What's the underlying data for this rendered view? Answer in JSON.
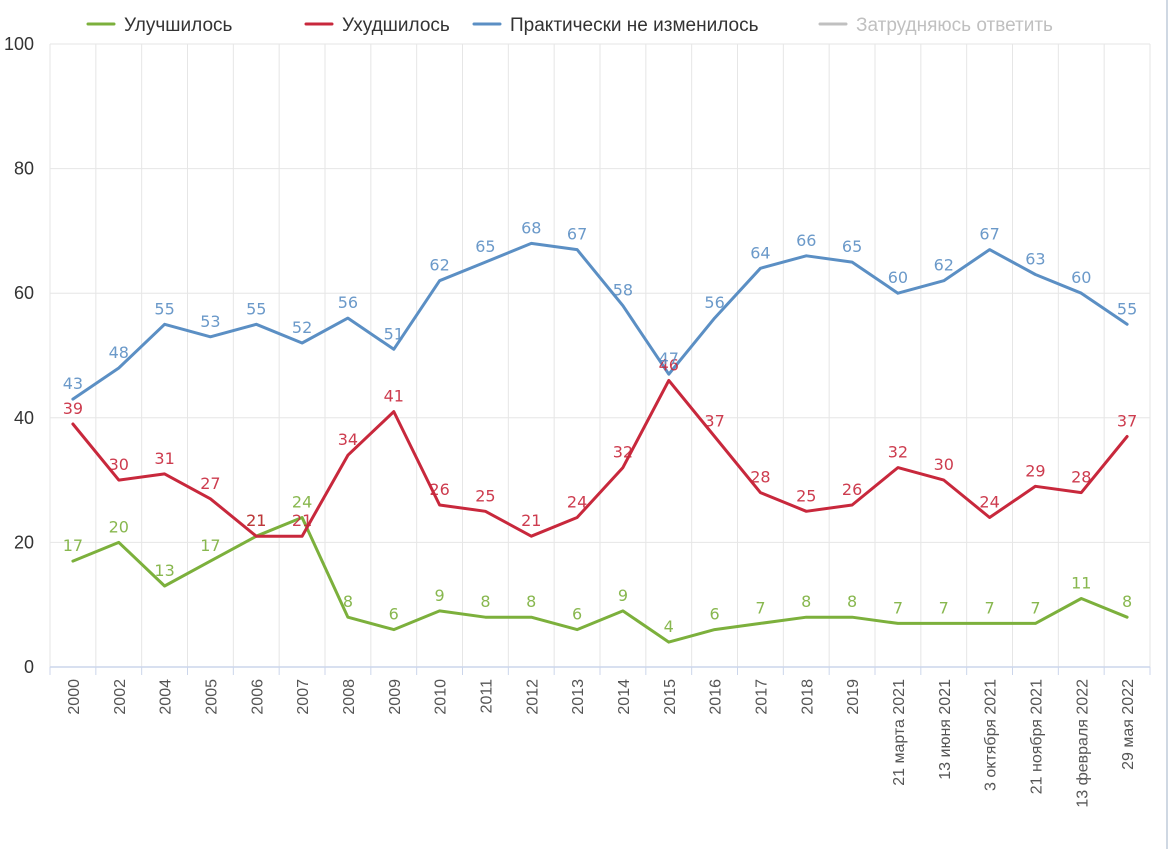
{
  "chart_data": {
    "type": "line",
    "title": "",
    "xlabel": "",
    "ylabel": "",
    "ylim": [
      0,
      100
    ],
    "yticks": [
      0,
      20,
      40,
      60,
      80,
      100
    ],
    "grid": true,
    "legend_position": "top",
    "categories": [
      "2000",
      "2002",
      "2004",
      "2005",
      "2006",
      "2007",
      "2008",
      "2009",
      "2010",
      "2011",
      "2012",
      "2013",
      "2014",
      "2015",
      "2016",
      "2017",
      "2018",
      "2019",
      "21 марта 2021",
      "13 июня 2021",
      "3 октября 2021",
      "21 ноября 2021",
      "13 февраля 2022",
      "29 мая 2022"
    ],
    "series": [
      {
        "name": "Улучшилось",
        "color": "#7cb03c",
        "visible": true,
        "values": [
          17,
          20,
          13,
          17,
          21,
          24,
          8,
          6,
          9,
          8,
          8,
          6,
          9,
          4,
          6,
          7,
          8,
          8,
          7,
          7,
          7,
          7,
          11,
          8
        ]
      },
      {
        "name": "Ухудшилось",
        "color": "#c8283c",
        "visible": true,
        "values": [
          39,
          30,
          31,
          27,
          21,
          21,
          34,
          41,
          26,
          25,
          21,
          24,
          32,
          46,
          37,
          28,
          25,
          26,
          32,
          30,
          24,
          29,
          28,
          37
        ]
      },
      {
        "name": "Практически не изменилось",
        "color": "#5b8fc4",
        "visible": true,
        "values": [
          43,
          48,
          55,
          53,
          55,
          52,
          56,
          51,
          62,
          65,
          68,
          67,
          58,
          47,
          56,
          64,
          66,
          65,
          60,
          62,
          67,
          63,
          60,
          55
        ]
      },
      {
        "name": "Затрудняюсь ответить",
        "color": "#c0c0c0",
        "visible": false,
        "values": []
      }
    ]
  }
}
